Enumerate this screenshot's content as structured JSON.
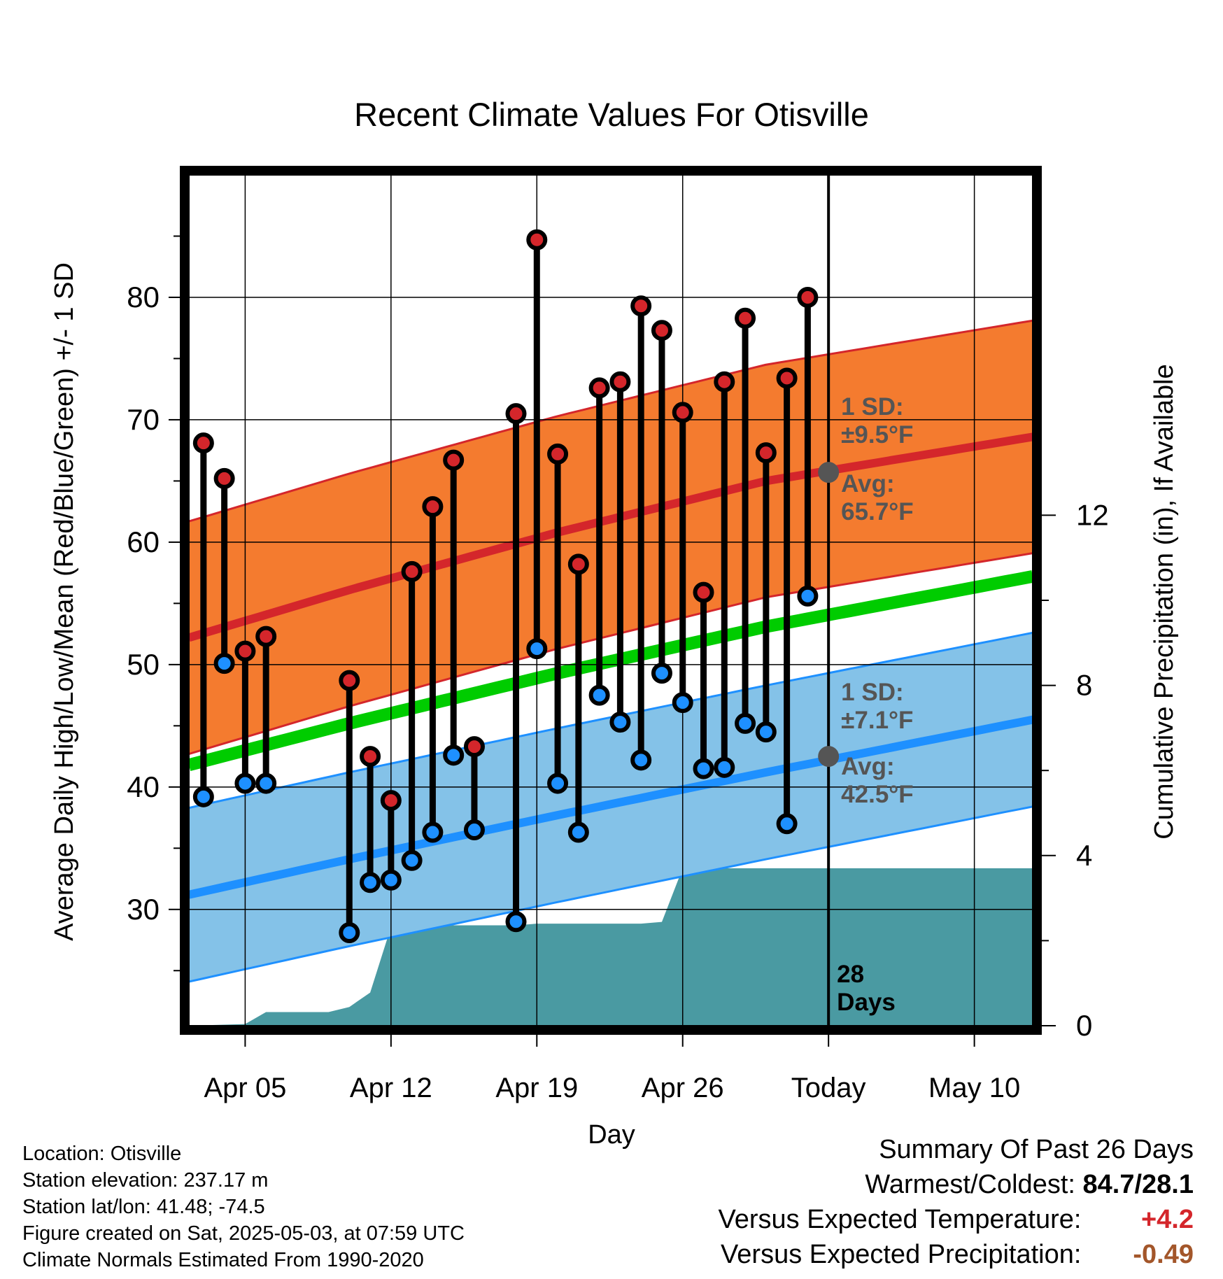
{
  "chart_data": {
    "type": "line",
    "title": "Recent Climate Values For Otisville",
    "xlabel": "Day",
    "ylabel": "Average Daily High/Low/Mean (Red/Blue/Green) +/- 1 SD",
    "y2label": "Cumulative Precipitation (in), If Available",
    "x_ticks": [
      {
        "day": 5,
        "label": "Apr 05"
      },
      {
        "day": 12,
        "label": "Apr 12"
      },
      {
        "day": 19,
        "label": "Apr 19"
      },
      {
        "day": 26,
        "label": "Apr 26"
      },
      {
        "day": 33,
        "label": "Today"
      },
      {
        "day": 40,
        "label": "May 10"
      }
    ],
    "xlim": [
      2.3,
      42.8
    ],
    "ylim": [
      20.5,
      90.0
    ],
    "y_ticks": [
      30,
      40,
      50,
      60,
      70,
      80
    ],
    "y2lim": [
      0,
      20
    ],
    "y2_ticks": [
      0,
      4,
      8,
      12
    ],
    "grid": true,
    "today_day": 33,
    "today_label": [
      "28",
      "Days"
    ],
    "highs": {
      "days": [
        3,
        4,
        5,
        6,
        10,
        11,
        12,
        13,
        14,
        15,
        16,
        18,
        19,
        20,
        21,
        22,
        23,
        24,
        25,
        26,
        27,
        28,
        29,
        30,
        31,
        32
      ],
      "values": [
        68.1,
        65.2,
        51.1,
        52.3,
        48.7,
        42.5,
        38.9,
        57.6,
        62.9,
        66.7,
        43.3,
        70.5,
        84.7,
        67.2,
        58.2,
        72.6,
        73.1,
        79.3,
        77.3,
        70.6,
        55.9,
        73.1,
        78.3,
        67.3,
        73.4,
        80.0
      ]
    },
    "lows": {
      "days": [
        3,
        4,
        5,
        6,
        10,
        11,
        12,
        13,
        14,
        15,
        16,
        18,
        19,
        20,
        21,
        22,
        23,
        24,
        25,
        26,
        27,
        28,
        29,
        30,
        31,
        32
      ],
      "values": [
        39.2,
        50.1,
        40.3,
        40.3,
        28.1,
        32.2,
        32.4,
        34.0,
        36.3,
        42.6,
        36.5,
        29.0,
        51.3,
        40.3,
        36.3,
        47.5,
        45.3,
        42.2,
        49.3,
        46.9,
        41.5,
        41.6,
        45.2,
        44.5,
        37.0,
        55.6
      ]
    },
    "normal_high": {
      "days": [
        2.3,
        10,
        20,
        30,
        42.8
      ],
      "mean": [
        52.2,
        56.1,
        60.8,
        65.0,
        68.6
      ],
      "sd": 9.5
    },
    "normal_low": {
      "days": [
        2.3,
        10,
        20,
        30,
        42.8
      ],
      "mean": [
        31.2,
        34.1,
        37.7,
        41.2,
        45.5
      ],
      "sd": 7.1
    },
    "normal_mean": {
      "days": [
        2.3,
        10,
        20,
        30,
        42.8
      ],
      "values": [
        41.8,
        45.2,
        49.3,
        53.1,
        57.2
      ]
    },
    "precip_cumulative": {
      "days": [
        2.3,
        5.0,
        6.0,
        7.0,
        8.0,
        9.0,
        10.0,
        11.0,
        12.0,
        13.0,
        14.0,
        15.0,
        16.0,
        17.0,
        18.0,
        19.0,
        20.0,
        21.0,
        22.0,
        23.0,
        24.0,
        25.0,
        26.0,
        27.0,
        28.0,
        29.0,
        30.0,
        31.0,
        32.0,
        33.0,
        42.8
      ],
      "values": [
        0.0,
        0.04,
        0.32,
        0.32,
        0.32,
        0.32,
        0.44,
        0.78,
        2.32,
        2.32,
        2.34,
        2.36,
        2.36,
        2.36,
        2.36,
        2.4,
        2.4,
        2.4,
        2.4,
        2.4,
        2.4,
        2.44,
        3.7,
        3.7,
        3.7,
        3.7,
        3.7,
        3.7,
        3.7,
        3.7,
        3.7
      ]
    },
    "annotations": {
      "high": {
        "line1": "1 SD:",
        "line2": "±9.5°F",
        "line3": "Avg:",
        "line4": "65.7°F",
        "avg": 65.7
      },
      "low": {
        "line1": "1 SD:",
        "line2": "±7.1°F",
        "line3": "Avg:",
        "line4": "42.5°F",
        "avg": 42.5
      }
    },
    "colors": {
      "high_band": "#f47b2f",
      "high_line": "#d4262b",
      "low_band": "#84c2e8",
      "low_line": "#1e90ff",
      "mean_line": "#00cc00",
      "precip": "#4a9aa2",
      "high_dot": "#d4262b",
      "low_dot": "#1e90ff",
      "annotation": "#555555"
    }
  },
  "info": {
    "location": "Location: Otisville",
    "elevation": "Station elevation: 237.17 m",
    "latlon": "Station lat/lon: 41.48; -74.5",
    "created": "Figure created on Sat, 2025-05-03, at 07:59 UTC",
    "normals": "Climate Normals Estimated From 1990-2020"
  },
  "summary": {
    "title": "Summary Of Past 26 Days",
    "warmest_label": "Warmest/Coldest:",
    "warmest_value": "84.7/28.1",
    "temp_label": "Versus Expected Temperature:",
    "temp_value": "+4.2",
    "precip_label": "Versus Expected Precipitation:",
    "precip_value": "-0.49"
  }
}
